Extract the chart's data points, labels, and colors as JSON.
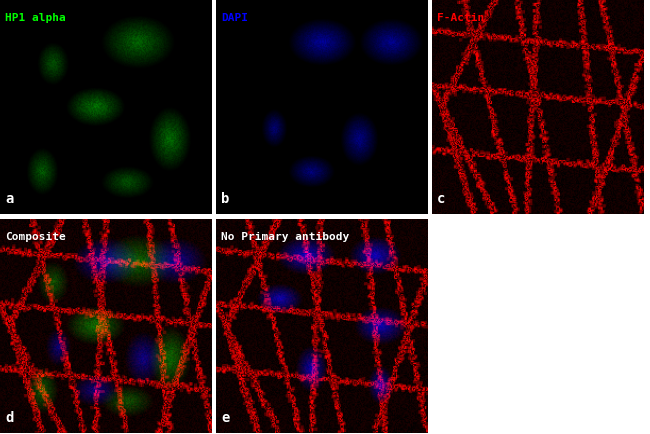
{
  "panels": [
    {
      "label": "HP1 alpha",
      "label_color": "#00ff00",
      "border_color": "#00aa00",
      "panel_letter": "a",
      "bg_color": "#000000",
      "channel": "green"
    },
    {
      "label": "DAPI",
      "label_color": "#0000ff",
      "border_color": "#0000aa",
      "panel_letter": "b",
      "bg_color": "#000000",
      "channel": "blue"
    },
    {
      "label": "F-Actin",
      "label_color": "#ff0000",
      "border_color": "#aa0000",
      "panel_letter": "c",
      "bg_color": "#000000",
      "channel": "red"
    },
    {
      "label": "Composite",
      "label_color": "#ffffff",
      "border_color": "#aa0000",
      "panel_letter": "d",
      "bg_color": "#000000",
      "channel": "composite"
    },
    {
      "label": "No Primary antibody",
      "label_color": "#ffffff",
      "border_color": "#aa0000",
      "panel_letter": "e",
      "bg_color": "#000000",
      "channel": "no_primary"
    },
    null
  ],
  "figsize": [
    6.5,
    4.34
  ],
  "dpi": 100,
  "background": "#ffffff"
}
